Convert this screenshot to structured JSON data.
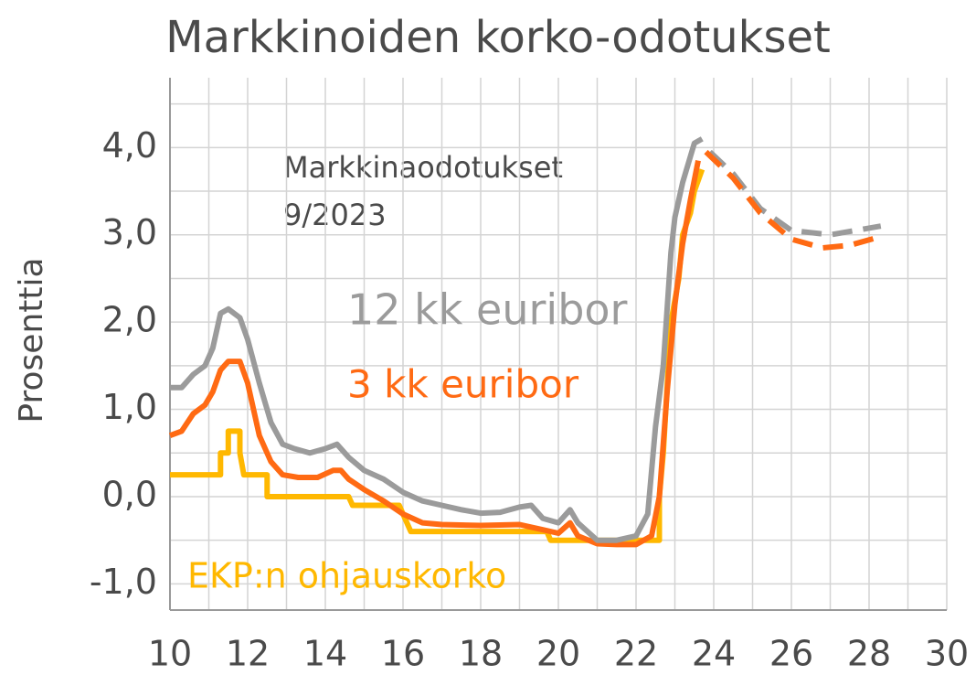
{
  "chart_data": {
    "type": "line",
    "title": "Markkinoiden korko-odotukset",
    "ylabel": "Prosenttia",
    "annotations": [
      "Markkinaodotukset",
      "9/2023"
    ],
    "xlim": [
      10,
      30
    ],
    "xticks": [
      10,
      12,
      14,
      16,
      18,
      20,
      22,
      24,
      26,
      28,
      30
    ],
    "xminor": [
      11,
      13,
      15,
      17,
      19,
      21,
      23,
      25,
      27,
      29
    ],
    "ylim": [
      -1.3,
      4.8
    ],
    "yticks": [
      {
        "value": -1,
        "label": "-1,0"
      },
      {
        "value": 0,
        "label": "0,0"
      },
      {
        "value": 1,
        "label": "1,0"
      },
      {
        "value": 2,
        "label": "2,0"
      },
      {
        "value": 3,
        "label": "3,0"
      },
      {
        "value": 4,
        "label": "4,0"
      }
    ],
    "yminor": [
      -0.5,
      0.5,
      1.5,
      2.5,
      3.5,
      4.5
    ],
    "grid": true,
    "series": [
      {
        "name": "12 kk euribor",
        "color": "#9b9b9b",
        "dashed": false,
        "x": [
          10.0,
          10.3,
          10.6,
          10.9,
          11.1,
          11.3,
          11.5,
          11.8,
          12.0,
          12.3,
          12.6,
          12.9,
          13.2,
          13.6,
          14.0,
          14.3,
          14.6,
          15.0,
          15.5,
          16.0,
          16.5,
          17.0,
          17.5,
          18.0,
          18.5,
          19.0,
          19.3,
          19.6,
          20.0,
          20.3,
          20.5,
          21.0,
          21.5,
          22.0,
          22.3,
          22.5,
          22.7,
          22.9,
          23.0,
          23.2,
          23.5,
          23.7
        ],
        "values": [
          1.25,
          1.25,
          1.4,
          1.5,
          1.7,
          2.1,
          2.15,
          2.05,
          1.8,
          1.3,
          0.85,
          0.6,
          0.55,
          0.5,
          0.55,
          0.6,
          0.45,
          0.3,
          0.2,
          0.05,
          -0.05,
          -0.1,
          -0.15,
          -0.19,
          -0.18,
          -0.12,
          -0.1,
          -0.25,
          -0.3,
          -0.15,
          -0.3,
          -0.5,
          -0.5,
          -0.45,
          -0.2,
          0.8,
          1.5,
          2.8,
          3.2,
          3.6,
          4.05,
          4.1
        ]
      },
      {
        "name": "3 kk euribor",
        "color": "#ff6a13",
        "dashed": false,
        "x": [
          10.0,
          10.3,
          10.6,
          10.9,
          11.1,
          11.3,
          11.5,
          11.8,
          12.0,
          12.3,
          12.6,
          12.9,
          13.3,
          13.8,
          14.2,
          14.4,
          14.6,
          15.0,
          15.5,
          16.0,
          16.5,
          17.0,
          18.0,
          19.0,
          19.6,
          20.0,
          20.3,
          20.5,
          21.0,
          21.5,
          22.0,
          22.4,
          22.6,
          22.8,
          23.0,
          23.2,
          23.4,
          23.6
        ],
        "values": [
          0.7,
          0.75,
          0.95,
          1.05,
          1.2,
          1.45,
          1.55,
          1.55,
          1.3,
          0.7,
          0.4,
          0.25,
          0.22,
          0.22,
          0.3,
          0.3,
          0.2,
          0.08,
          -0.05,
          -0.2,
          -0.3,
          -0.32,
          -0.33,
          -0.32,
          -0.38,
          -0.42,
          -0.3,
          -0.45,
          -0.54,
          -0.55,
          -0.55,
          -0.45,
          0.0,
          1.2,
          2.2,
          2.9,
          3.4,
          3.85
        ]
      },
      {
        "name": "EKP:n ohjauskorko",
        "color": "#ffb800",
        "dashed": false,
        "x": [
          10.0,
          11.3,
          11.3,
          11.5,
          11.5,
          11.8,
          11.8,
          11.9,
          12.5,
          12.5,
          14.6,
          14.7,
          15.9,
          16.0,
          16.2,
          19.7,
          19.8,
          22.6,
          22.6,
          22.7,
          22.8,
          22.9,
          23.1,
          23.2,
          23.4,
          23.5,
          23.7
        ],
        "values": [
          0.25,
          0.25,
          0.5,
          0.5,
          0.75,
          0.75,
          0.5,
          0.25,
          0.25,
          0.0,
          0.0,
          -0.1,
          -0.1,
          -0.2,
          -0.4,
          -0.4,
          -0.5,
          -0.5,
          0.0,
          0.5,
          1.25,
          2.0,
          2.5,
          3.0,
          3.25,
          3.5,
          3.75
        ]
      },
      {
        "color": "#9b9b9b",
        "dashed": true,
        "x": [
          23.9,
          24.5,
          25.2,
          26.0,
          27.0,
          28.3
        ],
        "values": [
          3.95,
          3.7,
          3.3,
          3.05,
          3.0,
          3.1
        ]
      },
      {
        "color": "#ff6a13",
        "dashed": true,
        "x": [
          23.8,
          24.5,
          25.2,
          26.0,
          26.8,
          27.5,
          28.3
        ],
        "values": [
          3.95,
          3.65,
          3.25,
          2.95,
          2.85,
          2.88,
          2.98
        ]
      }
    ]
  }
}
